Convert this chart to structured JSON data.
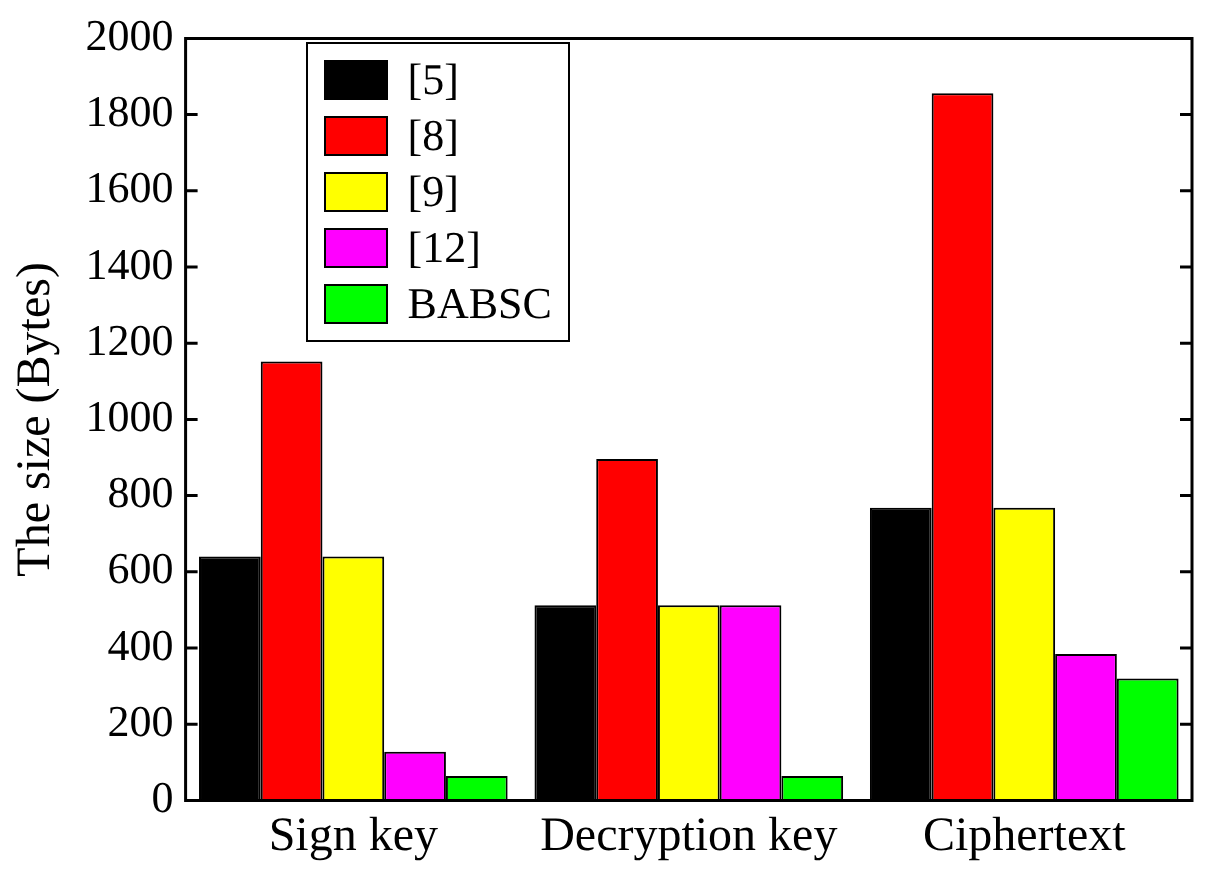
{
  "chart_data": {
    "type": "bar",
    "ylabel": "The size (Bytes)",
    "categories": [
      "Sign key",
      "Decryption key",
      "Ciphertext"
    ],
    "series": [
      {
        "name": "[5]",
        "color": "#000000",
        "values": [
          640,
          512,
          768
        ]
      },
      {
        "name": "[8]",
        "color": "#ff0000",
        "values": [
          1152,
          896,
          1856
        ]
      },
      {
        "name": "[9]",
        "color": "#ffff00",
        "values": [
          640,
          512,
          768
        ]
      },
      {
        "name": "[12]",
        "color": "#ff00ff",
        "values": [
          128,
          512,
          384
        ]
      },
      {
        "name": "BABSC",
        "color": "#00ff00",
        "values": [
          64,
          64,
          320
        ]
      }
    ],
    "ylim": [
      0,
      2000
    ],
    "yticks": [
      0,
      200,
      400,
      600,
      800,
      1000,
      1200,
      1400,
      1600,
      1800,
      2000
    ],
    "grid": false,
    "legend": "top left"
  }
}
